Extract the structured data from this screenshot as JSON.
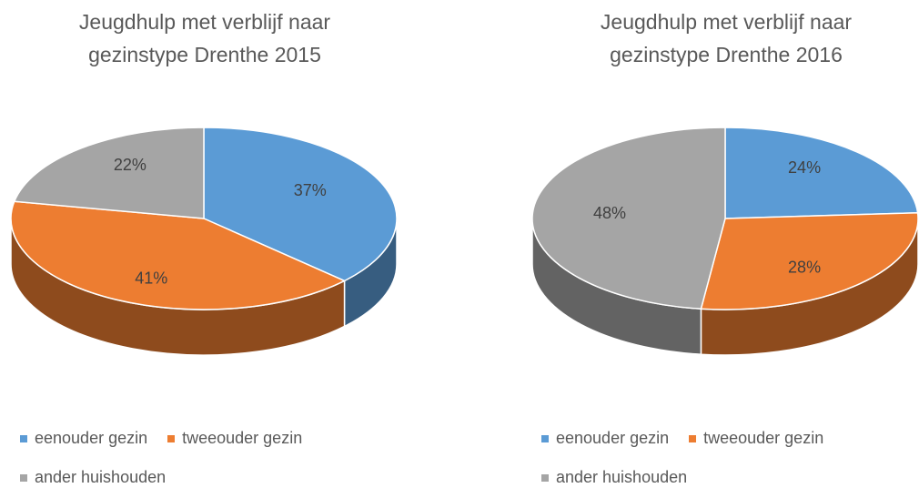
{
  "chart_data": [
    {
      "type": "pie",
      "title": "Jeugdhulp met verblijf naar gezinstype Drenthe 2015",
      "categories": [
        "eenouder gezin",
        "tweeouder gezin",
        "ander huishouden"
      ],
      "values": [
        37,
        41,
        22
      ],
      "value_labels": [
        "37%",
        "41%",
        "22%"
      ],
      "colors": [
        "#5b9bd5",
        "#ed7d31",
        "#a5a5a5"
      ],
      "legend": "bottom"
    },
    {
      "type": "pie",
      "title": "Jeugdhulp met verblijf naar gezinstype Drenthe 2016",
      "categories": [
        "eenouder gezin",
        "tweeouder gezin",
        "ander huishouden"
      ],
      "values": [
        24,
        28,
        48
      ],
      "value_labels": [
        "24%",
        "28%",
        "48%"
      ],
      "colors": [
        "#5b9bd5",
        "#ed7d31",
        "#a5a5a5"
      ],
      "legend": "bottom"
    }
  ]
}
